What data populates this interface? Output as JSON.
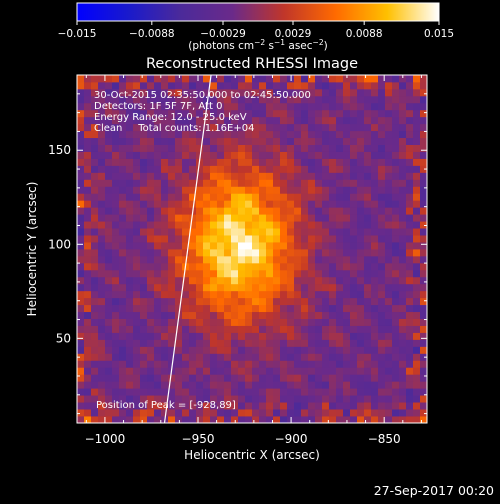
{
  "chart_data": {
    "type": "heatmap",
    "title": "Reconstructed RHESSI Image",
    "xlabel": "Heliocentric X (arcsec)",
    "ylabel": "Heliocentric Y (arcsec)",
    "xlim": [
      -1015,
      -827
    ],
    "ylim": [
      5,
      190
    ],
    "xticks": [
      -1000,
      -950,
      -900,
      -850
    ],
    "xtick_labels": [
      "−1000",
      "−950",
      "−900",
      "−850"
    ],
    "yticks": [
      50,
      100,
      150
    ],
    "ytick_labels": [
      "50",
      "100",
      "150"
    ],
    "colorbar": {
      "min": -0.015,
      "max": 0.015,
      "ticks": [
        -0.015,
        -0.0088,
        -0.0029,
        0.0029,
        0.0088,
        0.015
      ],
      "tick_labels": [
        "−0.015",
        "−0.0088",
        "−0.0029",
        "0.0029",
        "0.0088",
        "0.015"
      ],
      "units_prefix": "(photons cm",
      "units_exp1": "−2",
      "units_mid1": " s",
      "units_exp2": "−1",
      "units_mid2": " asec",
      "units_exp3": "−2",
      "units_suffix": ")",
      "colors": [
        "#0000ff",
        "#1a1acc",
        "#4b2a9a",
        "#6a2a8a",
        "#c0362a",
        "#ff6a00",
        "#ffc000",
        "#ffffff"
      ]
    },
    "annotations": [
      "30-Oct-2015 02:35:50.000 to 02:45:50.000",
      "Detectors: 1F 5F 7F, Att 0",
      "Energy Range: 12.0 - 25.0 keV",
      "Clean     Total counts: 1.16E+04"
    ],
    "peak_label": "Position of Peak = [-928,89]",
    "peak": {
      "x": -928,
      "y": 89
    },
    "source": {
      "x": -928,
      "y": 100,
      "amplitude": 0.0155,
      "sigma_x": 22,
      "sigma_y": 28
    },
    "limb_x_at_bottom": -968,
    "limb_x_at_top": -943,
    "grid": false
  },
  "footer": {
    "date": "27-Sep-2017 00:20"
  }
}
